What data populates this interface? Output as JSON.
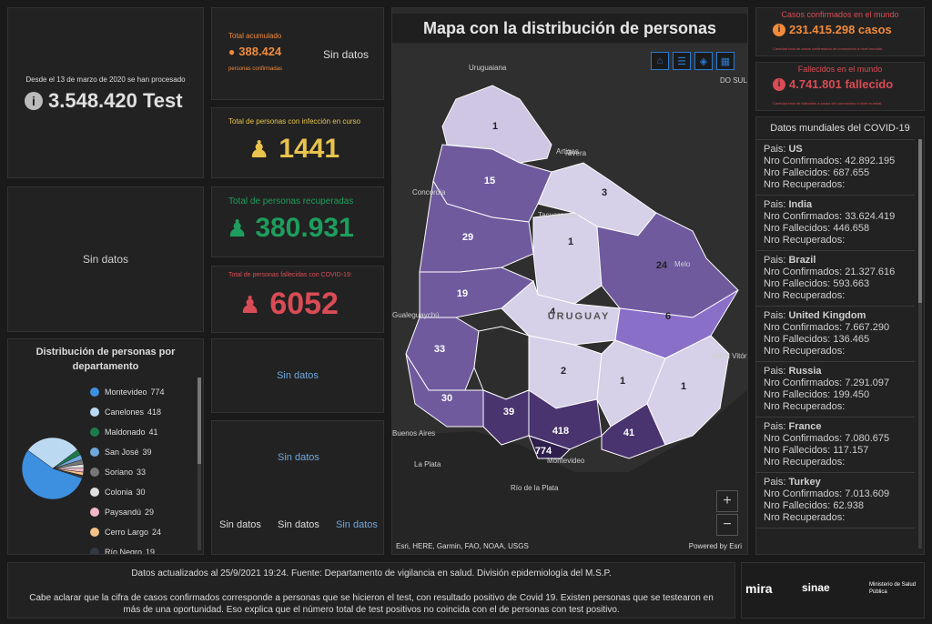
{
  "colors": {
    "orange": "#f08b3c",
    "yellow": "#e8c34d",
    "green": "#1d9e5c",
    "red": "#d94c55",
    "blue": "#6fa8dc"
  },
  "tests": {
    "caption": "Desde el 13 de marzo de 2020 se han procesado",
    "value": "3.548.420 Test"
  },
  "accum": {
    "label": "Total acumulado",
    "value": "388.424",
    "sub": "personas confirmadas",
    "nodata": "Sin datos"
  },
  "active": {
    "label": "Total de personas con infección en curso",
    "value": "1441"
  },
  "recovered": {
    "label": "Total de personas recuperadas",
    "value": "380.931"
  },
  "deceased": {
    "label": "Total de personas fallecidas con COVID-19:",
    "value": "6052"
  },
  "nodata": "Sin datos",
  "dept": {
    "title": "Distribución de personas por departamento",
    "items": [
      {
        "name": "Montevideo",
        "value": "774",
        "color": "#3d8fe0"
      },
      {
        "name": "Canelones",
        "value": "418",
        "color": "#bcd9f2"
      },
      {
        "name": "Maldonado",
        "value": "41",
        "color": "#1d7a4c"
      },
      {
        "name": "San José",
        "value": "39",
        "color": "#6fa8dc"
      },
      {
        "name": "Soriano",
        "value": "33",
        "color": "#777777"
      },
      {
        "name": "Colonia",
        "value": "30",
        "color": "#e0e0e0"
      },
      {
        "name": "Paysandú",
        "value": "29",
        "color": "#f2b8c6"
      },
      {
        "name": "Cerro Largo",
        "value": "24",
        "color": "#f5c28a"
      },
      {
        "name": "Río Negro",
        "value": "19",
        "color": "#333a44"
      }
    ]
  },
  "chart_data": {
    "type": "pie",
    "categories": [
      "Montevideo",
      "Canelones",
      "Maldonado",
      "San José",
      "Soriano",
      "Colonia",
      "Paysandú",
      "Cerro Largo",
      "Río Negro"
    ],
    "values": [
      774,
      418,
      41,
      39,
      33,
      30,
      29,
      24,
      19
    ]
  },
  "map": {
    "title": "Mapa con la distribución de personas",
    "country": "URUGUAY",
    "attribution": "Esri, HERE, Garmin, FAO, NOAA, USGS",
    "powered": "Powered by Esri",
    "places": [
      {
        "label": "Uruguaiana"
      },
      {
        "label": "Artigas"
      },
      {
        "label": "Concordia"
      },
      {
        "label": "Rivera"
      },
      {
        "label": "Tacuarembó"
      },
      {
        "label": "Melo"
      },
      {
        "label": "Buenos Aires"
      },
      {
        "label": "La Plata"
      },
      {
        "label": "Montevideo"
      },
      {
        "label": "Río de la Plata"
      },
      {
        "label": "Gualeguaychú"
      },
      {
        "label": "Santa Vitória do Palmar"
      },
      {
        "label": "DO SUL"
      }
    ],
    "counts": [
      "1",
      "15",
      "3",
      "29",
      "1",
      "24",
      "19",
      "4",
      "6",
      "33",
      "2",
      "1",
      "1",
      "30",
      "39",
      "418",
      "41",
      "774"
    ]
  },
  "world_cases": {
    "title": "Casos confirmados en el mundo",
    "value": "231.415.298 casos",
    "sub": "Cantidad total de casos confirmados de coronavirus a nivel mundial."
  },
  "world_deaths": {
    "title": "Fallecidos en el mundo",
    "value": "4.741.801 fallecido",
    "sub": "Cantidad total de fallecidos a causa del coronavirus a nivel mundial."
  },
  "world": {
    "title": "Datos mundiales del COVID-19",
    "labels": {
      "pais": "Pais:",
      "confirmados": "Nro Confirmados:",
      "fallecidos": "Nro Fallecidos:",
      "recuperados": "Nro Recuperados:"
    },
    "countries": [
      {
        "name": "US",
        "confirmed": "42.892.195",
        "deaths": "687.655"
      },
      {
        "name": "India",
        "confirmed": "33.624.419",
        "deaths": "446.658"
      },
      {
        "name": "Brazil",
        "confirmed": "21.327.616",
        "deaths": "593.663"
      },
      {
        "name": "United Kingdom",
        "confirmed": "7.667.290",
        "deaths": "136.465"
      },
      {
        "name": "Russia",
        "confirmed": "7.291.097",
        "deaths": "199.450"
      },
      {
        "name": "France",
        "confirmed": "7.080.675",
        "deaths": "117.157"
      },
      {
        "name": "Turkey",
        "confirmed": "7.013.609",
        "deaths": "62.938"
      }
    ]
  },
  "footer": {
    "line1": "Datos actualizados al 25/9/2021 19:24. Fuente: Departamento de vigilancia en salud. División epidemiología del M.S.P.",
    "line2": "Cabe aclarar que la cifra de casos confirmados corresponde a personas que se hicieron el test, con resultado positivo de Covid 19. Existen personas que se testearon en más de una oportunidad. Eso explica que el número total de test positivos no coincida con el de personas con test positivo.",
    "logos": [
      "mira",
      "sinae",
      "Ministerio de Salud Pública"
    ]
  }
}
